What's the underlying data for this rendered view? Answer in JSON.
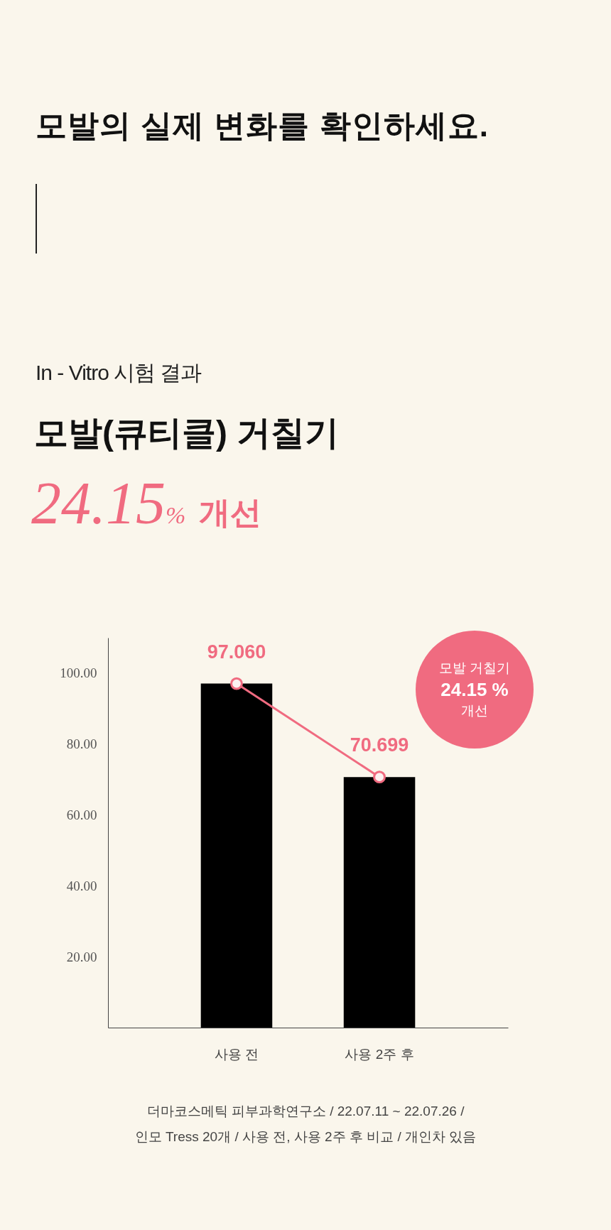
{
  "chart_data": {
    "type": "bar",
    "title": "모발의 실제 변화를 확인하세요.",
    "subtitle": "In - Vitro 시험 결과",
    "annotations": [
      "모발(큐티클) 거칠기",
      "24.15% 개선",
      "모발 거칠기\n24.15 %\n개선",
      "더마코스메틱 피부과학연구소 / 22.07.11 ~ 22.07.26 /",
      "인모 Tress 20개 / 사용 전, 사용 2주 후 비교 / 개인차 있음"
    ],
    "categories": [
      "사용 전",
      "사용 2주 후"
    ],
    "series": [
      {
        "color": "#000000",
        "values": [
          97.06,
          70.699
        ]
      },
      {
        "type": "line",
        "color": "#f06b80",
        "values": [
          97.06,
          70.699
        ],
        "value_labels": [
          "97.060",
          "70.699"
        ]
      }
    ],
    "ylim": [
      0,
      110
    ],
    "yticks": [
      {
        "value": 20,
        "label": "20.00"
      },
      {
        "value": 40,
        "label": "40.00"
      },
      {
        "value": 60,
        "label": "60.00"
      },
      {
        "value": 80,
        "label": "80.00"
      },
      {
        "value": 100,
        "label": "100.00"
      }
    ],
    "marker": "circle",
    "grid": false
  }
}
